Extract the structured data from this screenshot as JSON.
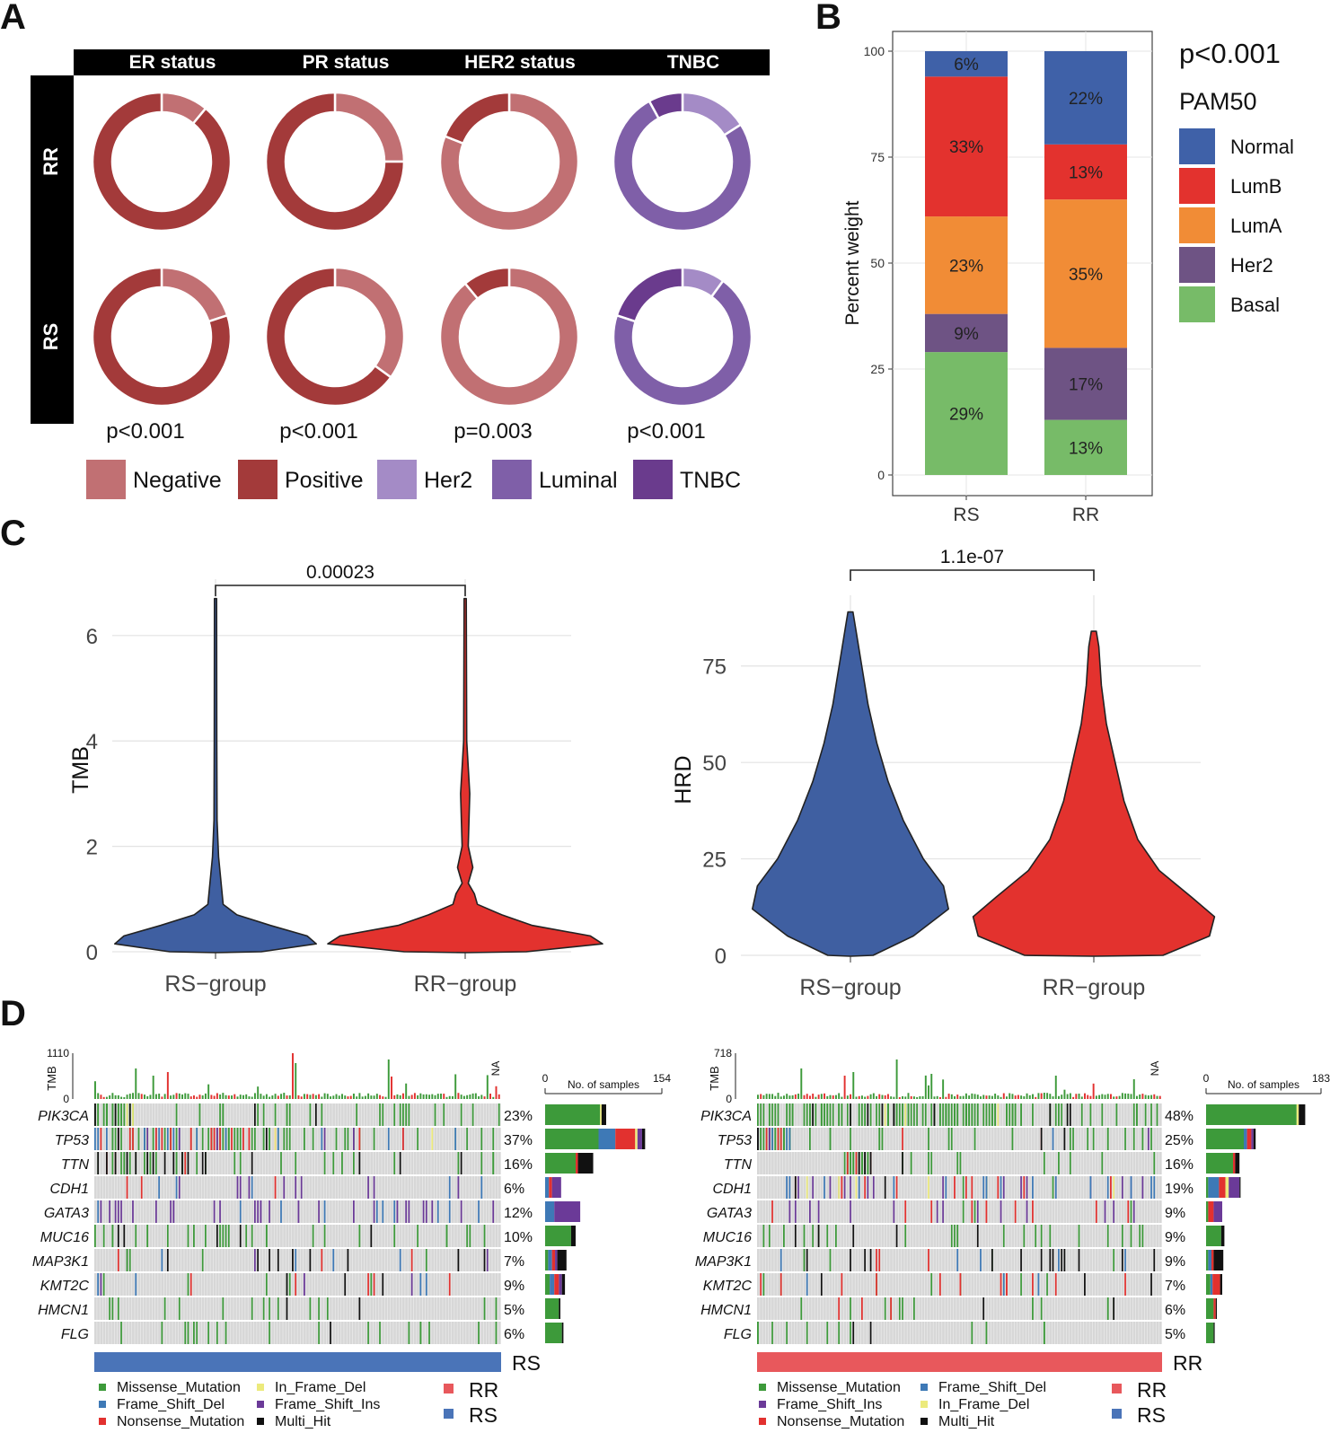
{
  "panel_labels": [
    "A",
    "B",
    "C",
    "D"
  ],
  "colors": {
    "negative": "#c17073",
    "positive": "#a33a3a",
    "her2": "#a48bc6",
    "luminal": "#7f5fa8",
    "tnbc": "#6a3b8d",
    "normal": "#3f61a8",
    "lumb": "#e3322e",
    "luma": "#f18c36",
    "pam_her2": "#6e5384",
    "basal": "#77bb68",
    "rs_violin": "#3f5fa1",
    "rr_violin": "#e3322e",
    "missense": "#3d9a3a",
    "frame_shift_del": "#3e79b6",
    "nonsense": "#e2312f",
    "in_frame_del": "#ecea7c",
    "frame_shift_ins": "#6b3a98",
    "multi_hit": "#111111",
    "rs_bar": "#4a74b8",
    "rr_bar": "#e8585c",
    "cell_bg": "#d7d7d7"
  },
  "chart_data": [
    {
      "id": "panel-a",
      "type": "pie",
      "variant": "donut-grid",
      "columns": [
        "ER status",
        "PR status",
        "HER2 status",
        "TNBC"
      ],
      "rows": [
        "RR",
        "RS"
      ],
      "donuts": [
        [
          {
            "segments": [
              {
                "label": "Negative",
                "value": 0.11
              },
              {
                "label": "Positive",
                "value": 0.89
              }
            ]
          },
          {
            "segments": [
              {
                "label": "Negative",
                "value": 0.25
              },
              {
                "label": "Positive",
                "value": 0.75
              }
            ]
          },
          {
            "segments": [
              {
                "label": "Negative",
                "value": 0.81
              },
              {
                "label": "Positive",
                "value": 0.19
              }
            ]
          },
          {
            "segments": [
              {
                "label": "Her2",
                "value": 0.16
              },
              {
                "label": "Luminal",
                "value": 0.76
              },
              {
                "label": "TNBC",
                "value": 0.08
              }
            ]
          }
        ],
        [
          {
            "segments": [
              {
                "label": "Negative",
                "value": 0.2
              },
              {
                "label": "Positive",
                "value": 0.8
              }
            ]
          },
          {
            "segments": [
              {
                "label": "Negative",
                "value": 0.35
              },
              {
                "label": "Positive",
                "value": 0.65
              }
            ]
          },
          {
            "segments": [
              {
                "label": "Negative",
                "value": 0.89
              },
              {
                "label": "Positive",
                "value": 0.11
              }
            ]
          },
          {
            "segments": [
              {
                "label": "Her2",
                "value": 0.1
              },
              {
                "label": "Luminal",
                "value": 0.7
              },
              {
                "label": "TNBC",
                "value": 0.2
              }
            ]
          }
        ]
      ],
      "pvalues": [
        "p<0.001",
        "p<0.001",
        "p=0.003",
        "p<0.001"
      ],
      "legend": [
        "Negative",
        "Positive",
        "Her2",
        "Luminal",
        "TNBC"
      ]
    },
    {
      "id": "panel-b",
      "type": "bar",
      "variant": "stacked-percent",
      "categories": [
        "RS",
        "RR"
      ],
      "series": [
        {
          "name": "Basal",
          "values": [
            29,
            13
          ],
          "labels": [
            "29%",
            "13%"
          ]
        },
        {
          "name": "Her2",
          "values": [
            9,
            17
          ],
          "labels": [
            "9%",
            "17%"
          ]
        },
        {
          "name": "LumA",
          "values": [
            23,
            35
          ],
          "labels": [
            "23%",
            "35%"
          ]
        },
        {
          "name": "LumB",
          "values": [
            33,
            13
          ],
          "labels": [
            "33%",
            "13%"
          ]
        },
        {
          "name": "Normal",
          "values": [
            6,
            22
          ],
          "labels": [
            "6%",
            "22%"
          ]
        }
      ],
      "ylabel": "Percent weight",
      "yticks": [
        "0",
        "25",
        "50",
        "75",
        "100"
      ],
      "ylim": [
        0,
        100
      ],
      "pvalue": "p<0.001",
      "legend_title": "PAM50",
      "legend": [
        "Normal",
        "LumB",
        "LumA",
        "Her2",
        "Basal"
      ]
    },
    {
      "id": "panel-c-tmb",
      "type": "scatter",
      "variant": "violin",
      "categories": [
        "RS−group",
        "RR−group"
      ],
      "ylabel": "TMB",
      "yticks": [
        "0",
        "2",
        "4",
        "6"
      ],
      "ylim": [
        0,
        6.9
      ],
      "pvalue": "0.00023",
      "series": [
        {
          "name": "RS−group",
          "max": 6.7,
          "profile": [
            [
              0,
              0.3
            ],
            [
              0.15,
              0.66
            ],
            [
              0.3,
              0.6
            ],
            [
              0.5,
              0.36
            ],
            [
              0.7,
              0.14
            ],
            [
              0.9,
              0.05
            ],
            [
              1.2,
              0.04
            ],
            [
              1.5,
              0.03
            ],
            [
              1.8,
              0.02
            ],
            [
              2.5,
              0.01
            ],
            [
              4,
              0.008
            ],
            [
              6.7,
              0.005
            ]
          ]
        },
        {
          "name": "RR−group",
          "max": 6.7,
          "profile": [
            [
              0,
              0.4
            ],
            [
              0.15,
              0.9
            ],
            [
              0.3,
              0.82
            ],
            [
              0.5,
              0.44
            ],
            [
              0.7,
              0.24
            ],
            [
              0.9,
              0.08
            ],
            [
              1.1,
              0.06
            ],
            [
              1.3,
              0.02
            ],
            [
              1.6,
              0.05
            ],
            [
              2.0,
              0.02
            ],
            [
              3.0,
              0.03
            ],
            [
              4.0,
              0.01
            ],
            [
              6.7,
              0.005
            ]
          ]
        }
      ]
    },
    {
      "id": "panel-c-hrd",
      "type": "scatter",
      "variant": "violin",
      "categories": [
        "RS−group",
        "RR−group"
      ],
      "ylabel": "HRD",
      "yticks": [
        "0",
        "25",
        "50",
        "75"
      ],
      "ylim": [
        0,
        91
      ],
      "pvalue": "1.1e-07",
      "series": [
        {
          "name": "RS−group",
          "max": 89,
          "profile": [
            [
              0,
              0.18
            ],
            [
              5,
              0.5
            ],
            [
              12,
              0.78
            ],
            [
              18,
              0.74
            ],
            [
              25,
              0.58
            ],
            [
              35,
              0.42
            ],
            [
              45,
              0.3
            ],
            [
              55,
              0.21
            ],
            [
              65,
              0.14
            ],
            [
              75,
              0.09
            ],
            [
              85,
              0.04
            ],
            [
              89,
              0.02
            ]
          ]
        },
        {
          "name": "RR−group",
          "max": 84,
          "profile": [
            [
              0,
              0.55
            ],
            [
              5,
              0.92
            ],
            [
              10,
              0.96
            ],
            [
              15,
              0.78
            ],
            [
              22,
              0.52
            ],
            [
              30,
              0.35
            ],
            [
              40,
              0.24
            ],
            [
              50,
              0.17
            ],
            [
              60,
              0.1
            ],
            [
              70,
              0.06
            ],
            [
              80,
              0.04
            ],
            [
              84,
              0.02
            ]
          ]
        }
      ]
    },
    {
      "id": "panel-d-rs",
      "type": "heatmap",
      "variant": "oncoplot",
      "group": "RS",
      "tmb_label": "TMB",
      "tmb_max": "1110",
      "tmb_min": "0",
      "na_label": "NA",
      "bar_axis_min": "0",
      "bar_axis_max": "154",
      "bar_axis_title": "No. of samples",
      "genes": [
        "PIK3CA",
        "TP53",
        "TTN",
        "CDH1",
        "GATA3",
        "MUC16",
        "MAP3K1",
        "KMT2C",
        "HMCN1",
        "FLG"
      ],
      "percent": [
        "23%",
        "37%",
        "16%",
        "6%",
        "12%",
        "10%",
        "7%",
        "9%",
        "5%",
        "6%"
      ],
      "counts": [
        {
          "missense": 72,
          "in_frame_del": 2,
          "multi_hit": 6
        },
        {
          "missense": 70,
          "frame_shift_del": 22,
          "nonsense": 26,
          "in_frame_del": 3,
          "frame_shift_ins": 6,
          "multi_hit": 4
        },
        {
          "missense": 40,
          "nonsense": 3,
          "multi_hit": 20
        },
        {
          "frame_shift_del": 5,
          "nonsense": 4,
          "frame_shift_ins": 12
        },
        {
          "frame_shift_del": 12,
          "frame_shift_ins": 34
        },
        {
          "missense": 34,
          "multi_hit": 6
        },
        {
          "missense": 4,
          "frame_shift_del": 5,
          "nonsense": 4,
          "frame_shift_ins": 3,
          "multi_hit": 12
        },
        {
          "missense": 6,
          "frame_shift_del": 6,
          "nonsense": 6,
          "frame_shift_ins": 4,
          "multi_hit": 4
        },
        {
          "missense": 18,
          "multi_hit": 2
        },
        {
          "missense": 22,
          "multi_hit": 2
        }
      ],
      "legend": [
        "Missense_Mutation",
        "In_Frame_Del",
        "Frame_Shift_Del",
        "Frame_Shift_Ins",
        "Nonsense_Mutation",
        "Multi_Hit"
      ],
      "group_legend": [
        "RR",
        "RS"
      ]
    },
    {
      "id": "panel-d-rr",
      "type": "heatmap",
      "variant": "oncoplot",
      "group": "RR",
      "tmb_label": "TMB",
      "tmb_max": "718",
      "tmb_min": "0",
      "na_label": "NA",
      "bar_axis_min": "0",
      "bar_axis_max": "183",
      "bar_axis_title": "No. of samples",
      "genes": [
        "PIK3CA",
        "TP53",
        "TTN",
        "CDH1",
        "GATA3",
        "MUC16",
        "MAP3K1",
        "KMT2C",
        "HMCN1",
        "FLG"
      ],
      "percent": [
        "48%",
        "25%",
        "16%",
        "19%",
        "9%",
        "9%",
        "9%",
        "7%",
        "6%",
        "5%"
      ],
      "counts": [
        {
          "missense": 168,
          "in_frame_del": 4,
          "multi_hit": 12
        },
        {
          "missense": 70,
          "nonsense": 8,
          "frame_shift_del": 6,
          "frame_shift_ins": 4,
          "multi_hit": 4
        },
        {
          "missense": 50,
          "nonsense": 4,
          "multi_hit": 8
        },
        {
          "missense": 4,
          "frame_shift_ins": 20,
          "nonsense": 12,
          "frame_shift_del": 20,
          "in_frame_del": 6,
          "multi_hit": 2
        },
        {
          "missense": 4,
          "frame_shift_ins": 16,
          "nonsense": 10
        },
        {
          "missense": 28,
          "multi_hit": 6
        },
        {
          "missense": 4,
          "nonsense": 4,
          "frame_shift_del": 6,
          "multi_hit": 18
        },
        {
          "missense": 8,
          "nonsense": 14,
          "frame_shift_del": 4,
          "multi_hit": 4
        },
        {
          "missense": 14,
          "nonsense": 4,
          "multi_hit": 2
        },
        {
          "missense": 14,
          "multi_hit": 2
        }
      ],
      "legend": [
        "Missense_Mutation",
        "Frame_Shift_Del",
        "Frame_Shift_Ins",
        "In_Frame_Del",
        "Nonsense_Mutation",
        "Multi_Hit"
      ],
      "group_legend": [
        "RR",
        "RS"
      ]
    }
  ]
}
